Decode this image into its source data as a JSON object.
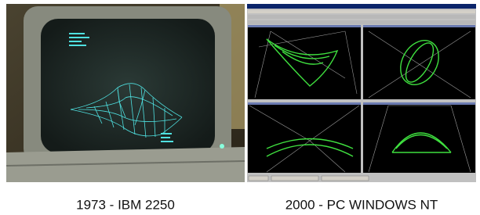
{
  "figures": [
    {
      "caption": "1973 - IBM 2250"
    },
    {
      "caption": "2000 - PC WINDOWS NT"
    }
  ]
}
